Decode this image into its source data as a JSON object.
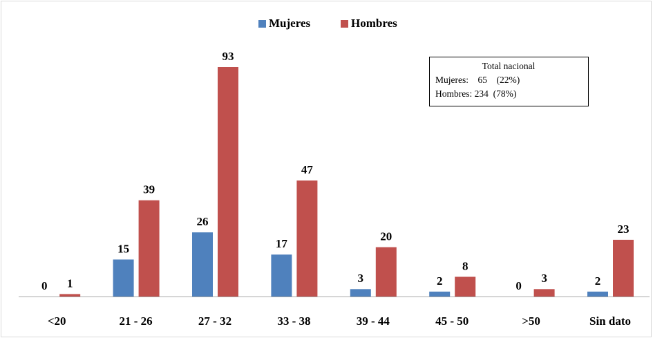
{
  "chart_data": {
    "type": "bar",
    "categories": [
      "<20",
      "21 - 26",
      "27 - 32",
      "33 - 38",
      "39 - 44",
      "45 - 50",
      ">50",
      "Sin dato"
    ],
    "series": [
      {
        "name": "Mujeres",
        "color": "#4f81bd",
        "values": [
          0,
          15,
          26,
          17,
          3,
          2,
          0,
          2
        ]
      },
      {
        "name": "Hombres",
        "color": "#c0504d",
        "values": [
          1,
          39,
          93,
          47,
          20,
          8,
          3,
          23
        ]
      }
    ],
    "legend": "top",
    "annotation": {
      "title": "Total nacional",
      "lines": [
        "Mujeres:    65    (22%)",
        "Hombres: 234  (78%)"
      ]
    }
  }
}
